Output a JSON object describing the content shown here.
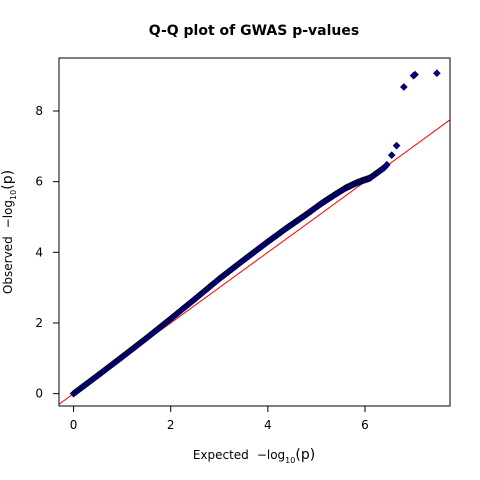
{
  "chart_data": {
    "type": "scatter",
    "title": "Q-Q plot of GWAS p-values",
    "xlabel": {
      "text": "Expected",
      "formula": "−log",
      "subscript": "10",
      "arg": "(p)"
    },
    "ylabel": {
      "text": "Observed",
      "formula": "−log",
      "subscript": "10",
      "arg": "(p)"
    },
    "xlim": [
      -0.3,
      7.75
    ],
    "ylim": [
      -0.35,
      9.5
    ],
    "xticks": [
      0,
      2,
      4,
      6
    ],
    "yticks": [
      0,
      2,
      4,
      6,
      8
    ],
    "grid": false,
    "legend": "none",
    "marker": "diamond",
    "marker_color": "#00008b",
    "reference_line": {
      "slope": 1,
      "intercept": 0,
      "color": "#ff0000"
    },
    "curve": [
      [
        0,
        0
      ],
      [
        0.3,
        0.31
      ],
      [
        0.6,
        0.62
      ],
      [
        1.0,
        1.04
      ],
      [
        1.5,
        1.57
      ],
      [
        2.0,
        2.12
      ],
      [
        2.5,
        2.68
      ],
      [
        3.0,
        3.25
      ],
      [
        3.5,
        3.78
      ],
      [
        4.0,
        4.3
      ],
      [
        4.4,
        4.7
      ],
      [
        4.8,
        5.08
      ],
      [
        5.1,
        5.38
      ],
      [
        5.4,
        5.65
      ],
      [
        5.6,
        5.82
      ],
      [
        5.8,
        5.95
      ],
      [
        5.95,
        6.03
      ],
      [
        6.1,
        6.1
      ],
      [
        6.2,
        6.2
      ],
      [
        6.3,
        6.3
      ],
      [
        6.4,
        6.4
      ],
      [
        6.45,
        6.48
      ]
    ],
    "outliers": [
      [
        6.55,
        6.75
      ],
      [
        6.65,
        7.02
      ],
      [
        6.8,
        8.68
      ],
      [
        7.0,
        9.0
      ],
      [
        7.03,
        9.03
      ],
      [
        7.48,
        9.07
      ]
    ]
  }
}
